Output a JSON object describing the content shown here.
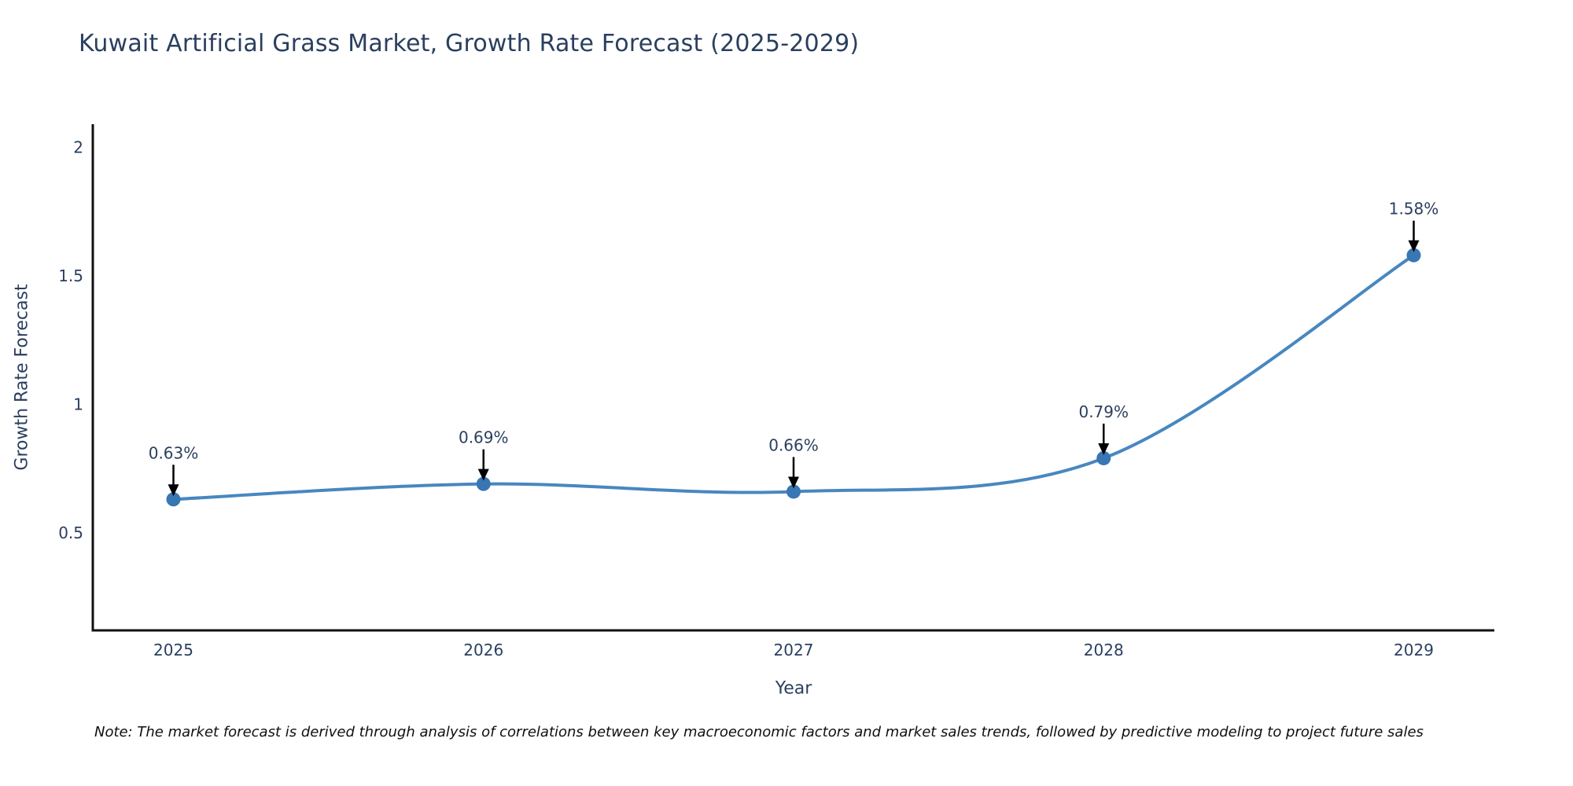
{
  "note": "Note: The market forecast is derived through analysis of correlations between key macroeconomic factors and market sales trends, followed by predictive modeling to project future sales",
  "chart_data": {
    "type": "line",
    "title": "Kuwait Artificial Grass Market, Growth Rate Forecast (2025-2029)",
    "xlabel": "Year",
    "ylabel": "Growth Rate Forecast",
    "x": [
      2025,
      2026,
      2027,
      2028,
      2029
    ],
    "values": [
      0.63,
      0.69,
      0.66,
      0.79,
      1.58
    ],
    "point_labels": [
      "0.63%",
      "0.69%",
      "0.66%",
      "0.79%",
      "1.58%"
    ],
    "xticks": [
      2025,
      2026,
      2027,
      2028,
      2029
    ],
    "yticks": [
      0.5,
      1,
      1.5,
      2
    ],
    "xlim": [
      2024.74,
      2029.26
    ],
    "ylim": [
      0.12,
      2.09
    ],
    "grid": false,
    "legend": "none",
    "line_shape": "spline",
    "colors": {
      "line": "#4887c0",
      "marker": "#3876b4",
      "axis": "#111111",
      "text": "#2a3f5f",
      "annotation_arrow": "#000000"
    }
  }
}
